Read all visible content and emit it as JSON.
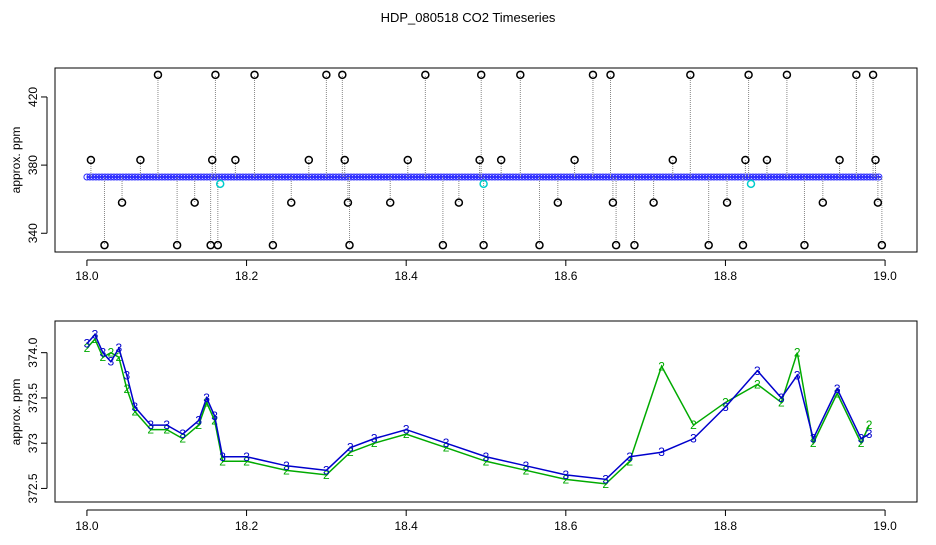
{
  "chart_data": [
    {
      "type": "scatter",
      "title": "HDP_080518  CO2 Timeseries",
      "ylabel": "approx. ppm",
      "xlim": [
        17.96,
        19.04
      ],
      "ylim": [
        329,
        437
      ],
      "xticks": [
        18.0,
        18.2,
        18.4,
        18.6,
        18.8,
        19.0
      ],
      "xtick_labels": [
        "18.0",
        "18.2",
        "18.4",
        "18.6",
        "18.8",
        "19.0"
      ],
      "yticks": [
        340,
        380,
        420
      ],
      "ytick_labels": [
        "340",
        "380",
        "420"
      ],
      "baseline": {
        "x": [
          18.0,
          18.995
        ],
        "y": 373
      },
      "series": [
        {
          "color": "#0000ff",
          "marker": "circle",
          "x": [
            18.0,
            18.2,
            18.4,
            18.6,
            18.8,
            18.99
          ],
          "y": [
            373,
            373,
            373,
            373,
            373,
            373
          ]
        },
        {
          "color": "#00ffff",
          "marker": "circle",
          "x": [
            18.167,
            18.497,
            18.832
          ],
          "y": [
            369,
            369,
            369
          ]
        },
        {
          "color": "#000000",
          "marker": "circle",
          "x": [
            18.005,
            18.022,
            18.044,
            18.067,
            18.089,
            18.113,
            18.135,
            18.155,
            18.157,
            18.161,
            18.164,
            18.186,
            18.21,
            18.233,
            18.256,
            18.278,
            18.3,
            18.32,
            18.323,
            18.327,
            18.329,
            18.38,
            18.402,
            18.424,
            18.446,
            18.466,
            18.492,
            18.494,
            18.497,
            18.519,
            18.543,
            18.567,
            18.59,
            18.611,
            18.634,
            18.656,
            18.659,
            18.663,
            18.686,
            18.71,
            18.734,
            18.756,
            18.779,
            18.802,
            18.822,
            18.825,
            18.829,
            18.852,
            18.877,
            18.899,
            18.922,
            18.943,
            18.964,
            18.985,
            18.988,
            18.991,
            18.996
          ],
          "y": [
            383,
            333,
            358,
            383,
            433,
            333,
            358,
            333,
            383,
            433,
            333,
            383,
            433,
            333,
            358,
            383,
            433,
            433,
            383,
            358,
            333,
            358,
            383,
            433,
            333,
            358,
            383,
            433,
            333,
            383,
            433,
            333,
            358,
            383,
            433,
            433,
            358,
            333,
            333,
            358,
            383,
            433,
            333,
            358,
            333,
            383,
            433,
            383,
            433,
            333,
            358,
            383,
            433,
            433,
            383,
            358,
            333
          ]
        }
      ]
    },
    {
      "type": "line",
      "ylabel": "approx. ppm",
      "xlim": [
        17.96,
        19.04
      ],
      "ylim": [
        372.35,
        374.35
      ],
      "xticks": [
        18.0,
        18.2,
        18.4,
        18.6,
        18.8,
        19.0
      ],
      "xtick_labels": [
        "18.0",
        "18.2",
        "18.4",
        "18.6",
        "18.8",
        "19.0"
      ],
      "yticks": [
        372.5,
        373.0,
        373.5,
        374.0
      ],
      "ytick_labels": [
        "372.5",
        "373",
        "373.5",
        "374.0"
      ],
      "series": [
        {
          "name": "3",
          "color": "#0000cc",
          "x": [
            18.0,
            18.01,
            18.02,
            18.03,
            18.04,
            18.05,
            18.06,
            18.08,
            18.1,
            18.12,
            18.14,
            18.15,
            18.16,
            18.17,
            18.2,
            18.25,
            18.3,
            18.33,
            18.36,
            18.4,
            18.45,
            18.5,
            18.55,
            18.6,
            18.65,
            18.68,
            18.72,
            18.76,
            18.8,
            18.84,
            18.87,
            18.89,
            18.91,
            18.94,
            18.97,
            18.98
          ],
          "y": [
            374.1,
            374.2,
            374.0,
            373.9,
            374.05,
            373.75,
            373.4,
            373.2,
            373.2,
            373.1,
            373.25,
            373.5,
            373.3,
            372.85,
            372.85,
            372.75,
            372.7,
            372.95,
            373.05,
            373.15,
            373.0,
            372.85,
            372.75,
            372.65,
            372.6,
            372.85,
            372.9,
            373.05,
            373.4,
            373.8,
            373.5,
            373.75,
            373.05,
            373.6,
            373.05,
            373.1
          ]
        },
        {
          "name": "2",
          "color": "#00aa00",
          "x": [
            18.0,
            18.01,
            18.02,
            18.03,
            18.04,
            18.05,
            18.06,
            18.08,
            18.1,
            18.12,
            18.14,
            18.15,
            18.16,
            18.17,
            18.2,
            18.25,
            18.3,
            18.33,
            18.36,
            18.4,
            18.45,
            18.5,
            18.55,
            18.6,
            18.65,
            18.68,
            18.72,
            18.76,
            18.8,
            18.84,
            18.87,
            18.89,
            18.91,
            18.94,
            18.97,
            18.98
          ],
          "y": [
            374.05,
            374.15,
            373.95,
            374.0,
            373.95,
            373.6,
            373.35,
            373.15,
            373.15,
            373.05,
            373.2,
            373.45,
            373.25,
            372.8,
            372.8,
            372.7,
            372.65,
            372.9,
            373.0,
            373.1,
            372.95,
            372.8,
            372.7,
            372.6,
            372.55,
            372.8,
            373.85,
            373.2,
            373.45,
            373.65,
            373.45,
            374.0,
            373.0,
            373.55,
            373.0,
            373.2
          ]
        }
      ]
    }
  ]
}
